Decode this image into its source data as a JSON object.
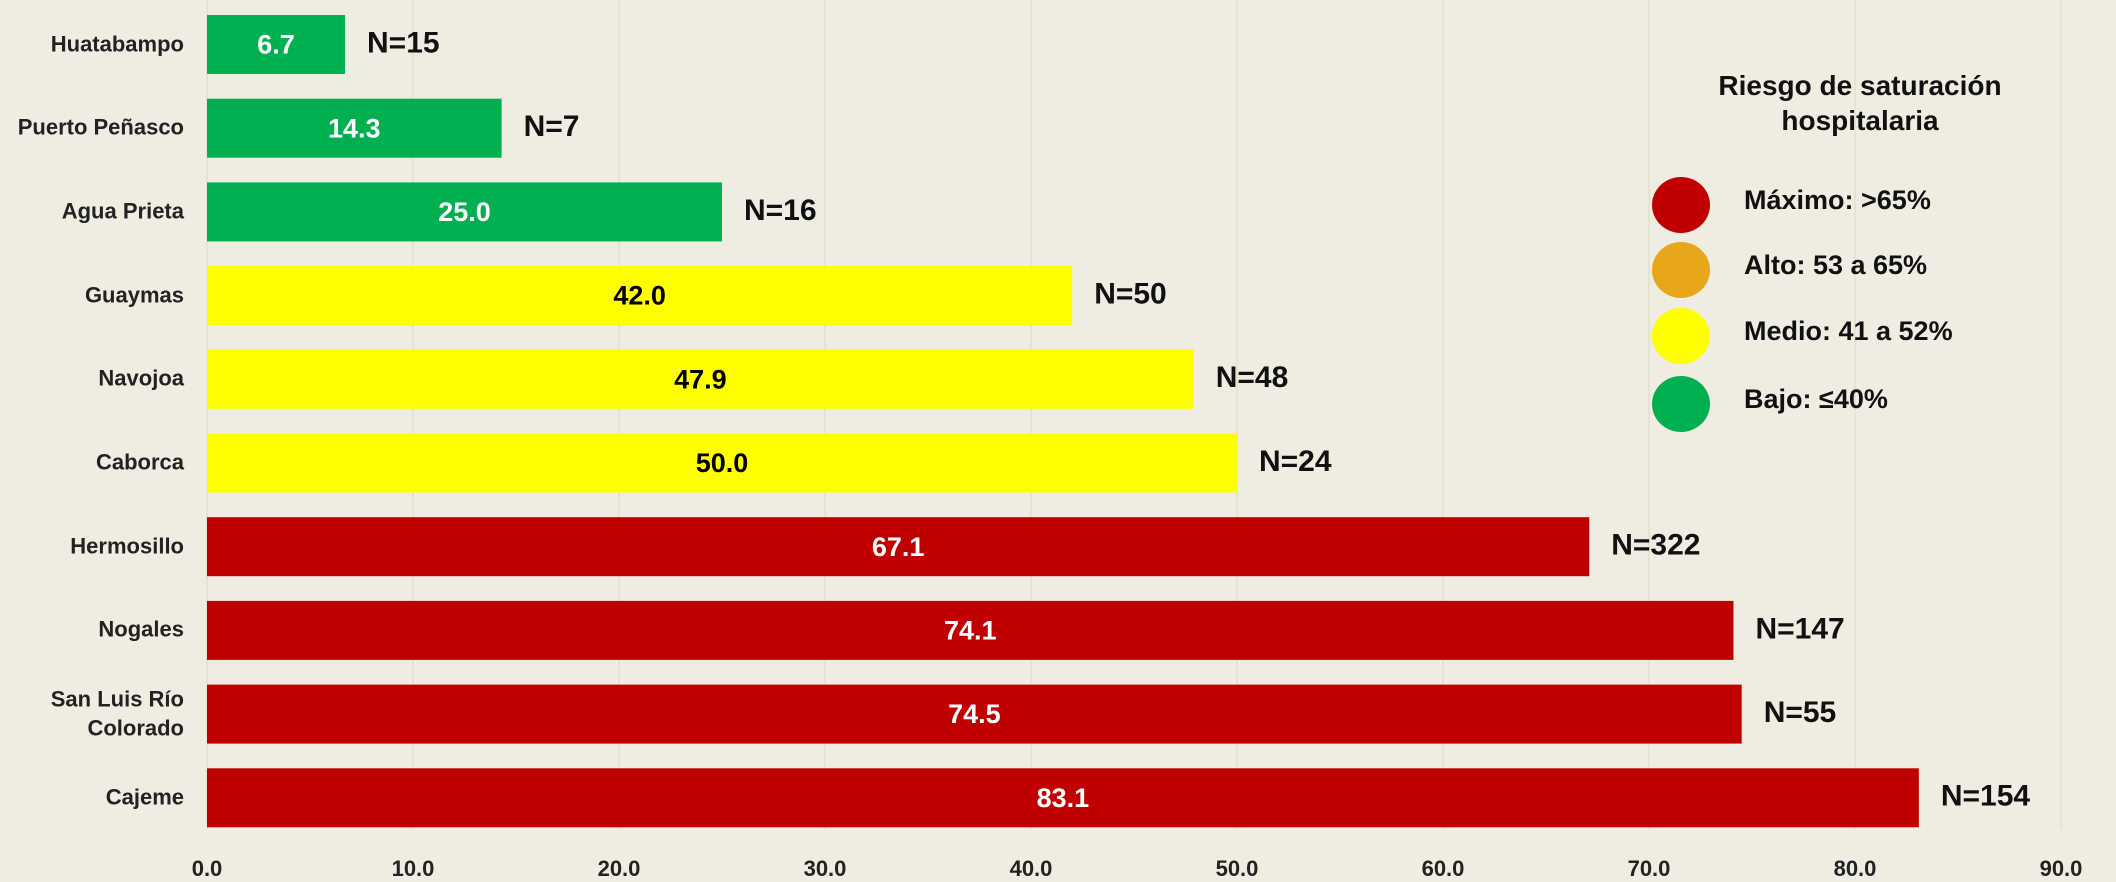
{
  "chart_data": {
    "type": "bar",
    "orientation": "horizontal",
    "categories": [
      "Huatabampo",
      "Puerto Peñasco",
      "Agua Prieta",
      "Guaymas",
      "Navojoa",
      "Caborca",
      "Hermosillo",
      "Nogales",
      "San Luis Río Colorado",
      "Cajeme"
    ],
    "values": [
      6.7,
      14.3,
      25.0,
      42.0,
      47.9,
      50.0,
      67.1,
      74.1,
      74.5,
      83.1
    ],
    "value_labels": [
      "6.7",
      "14.3",
      "25.0",
      "42.0",
      "47.9",
      "50.0",
      "67.1",
      "74.1",
      "74.5",
      "83.1"
    ],
    "colors": [
      "#00b050",
      "#00b050",
      "#00b050",
      "#ffff00",
      "#ffff00",
      "#ffff00",
      "#c00000",
      "#c00000",
      "#c00000",
      "#c00000"
    ],
    "annotations": [
      "N=15",
      "N=7",
      "N=16",
      "N=50",
      "N=48",
      "N=24",
      "N=322",
      "N=147",
      "N=55",
      "N=154"
    ],
    "xlim": [
      0,
      90
    ],
    "xticks": [
      {
        "value": 0,
        "label": "0.0"
      },
      {
        "value": 10,
        "label": "10.0"
      },
      {
        "value": 20,
        "label": "20.0"
      },
      {
        "value": 30,
        "label": "30.0"
      },
      {
        "value": 40,
        "label": "40.0"
      },
      {
        "value": 50,
        "label": "50.0"
      },
      {
        "value": 60,
        "label": "60.0"
      },
      {
        "value": 70,
        "label": "70.0"
      },
      {
        "value": 80,
        "label": "80.0"
      },
      {
        "value": 90,
        "label": "90.0"
      }
    ],
    "grid": true,
    "legend": {
      "title": "Riesgo de saturación hospitalaria",
      "items": [
        {
          "label": "Máximo: >65%",
          "color": "#c00000"
        },
        {
          "label": "Alto: 53 a 65%",
          "color": "#e8a71a"
        },
        {
          "label": "Medio: 41 a 52%",
          "color": "#ffff00"
        },
        {
          "label": "Bajo: ≤40%",
          "color": "#00b050"
        }
      ]
    }
  }
}
